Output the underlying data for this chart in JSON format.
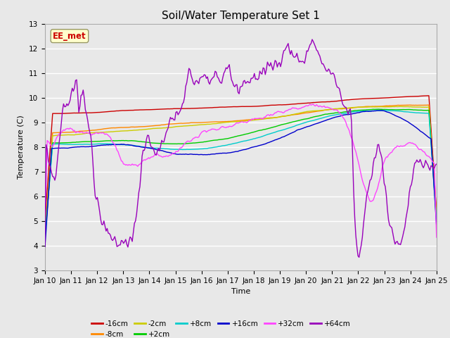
{
  "title": "Soil/Water Temperature Set 1",
  "xlabel": "Time",
  "ylabel": "Temperature (C)",
  "ylim": [
    3.0,
    13.0
  ],
  "yticks": [
    3.0,
    4.0,
    5.0,
    6.0,
    7.0,
    8.0,
    9.0,
    10.0,
    11.0,
    12.0,
    13.0
  ],
  "num_points": 360,
  "xtick_labels": [
    "Jan 10",
    "Jan 11",
    "Jan 12",
    "Jan 13",
    "Jan 14",
    "Jan 15",
    "Jan 16",
    "Jan 17",
    "Jan 18",
    "Jan 19",
    "Jan 20",
    "Jan 21",
    "Jan 22",
    "Jan 23",
    "Jan 24",
    "Jan 25"
  ],
  "series_colors": {
    "-16cm": "#cc0000",
    "-8cm": "#ff8800",
    "-2cm": "#cccc00",
    "+2cm": "#00cc00",
    "+8cm": "#00cccc",
    "+16cm": "#0000cc",
    "+32cm": "#ff44ff",
    "+64cm": "#9900bb"
  },
  "background_color": "#e8e8e8",
  "plot_bg_color": "#e8e8e8",
  "annotation_text": "EE_met",
  "annotation_color": "#cc0000",
  "annotation_bg": "#ffffcc",
  "grid_color": "#ffffff",
  "title_fontsize": 11,
  "tick_fontsize": 7.5,
  "label_fontsize": 8
}
